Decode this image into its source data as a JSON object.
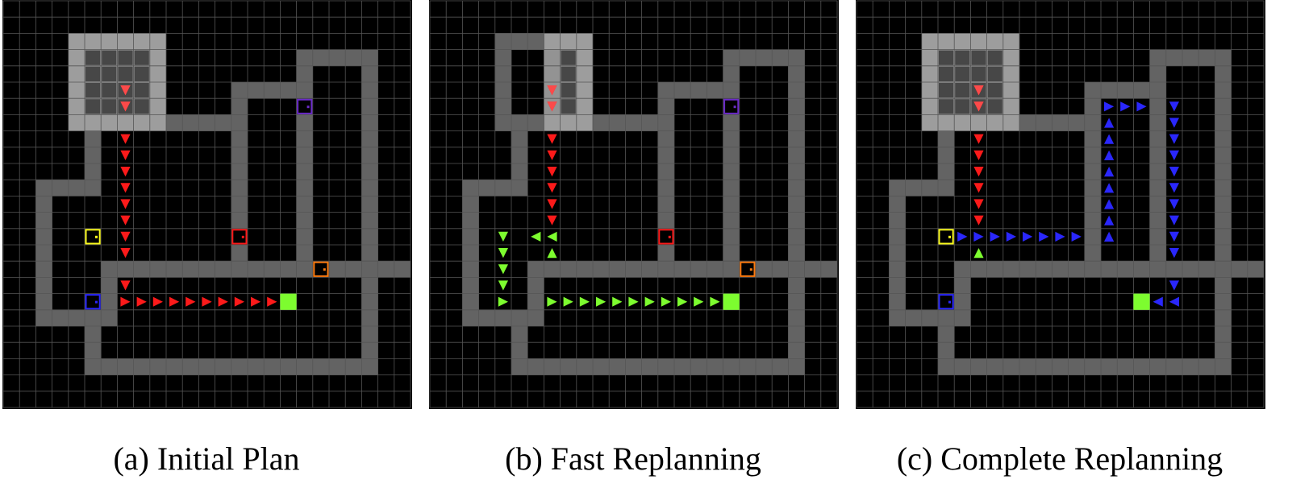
{
  "colors": {
    "background": "#000000",
    "grid": "#555555",
    "wall": "#636363",
    "fog": "#a3a3a3",
    "fog_inner": "#474747",
    "agent": "#fb4a4a",
    "goal": "#7dfc2f",
    "red": "#fc1a1a",
    "green": "#7dfc2f",
    "blue": "#2a27fb",
    "yellow": "#fbfb1d",
    "purple": "#6b2bc9",
    "orange": "#fb7a10",
    "door_blue": "#1a1ac6"
  },
  "panels": [
    {
      "caption": "(a) Initial Plan",
      "agent_view": [
        [
          4,
          2
        ],
        [
          4,
          3
        ],
        [
          4,
          4
        ],
        [
          4,
          5
        ],
        [
          4,
          6
        ],
        [
          4,
          7
        ],
        [
          4,
          8
        ],
        [
          4,
          9
        ],
        [
          4,
          10
        ],
        [
          4,
          11
        ],
        [
          4,
          12
        ],
        [
          4,
          13
        ],
        [
          4,
          14
        ],
        [
          4,
          15
        ],
        [
          4,
          16
        ],
        [
          4,
          17
        ],
        [
          4,
          18
        ],
        [
          4,
          19
        ]
      ],
      "path": [
        {
          "color": "red",
          "dir": "down",
          "cells": [
            [
              5,
              7
            ],
            [
              6,
              7
            ],
            [
              8,
              7
            ],
            [
              9,
              7
            ],
            [
              10,
              7
            ],
            [
              11,
              7
            ],
            [
              12,
              7
            ],
            [
              13,
              7
            ],
            [
              14,
              7
            ],
            [
              15,
              7
            ],
            [
              17,
              7
            ]
          ]
        },
        {
          "color": "red",
          "dir": "right",
          "cells": [
            [
              18,
              7
            ],
            [
              18,
              8
            ],
            [
              18,
              9
            ],
            [
              18,
              10
            ],
            [
              18,
              11
            ],
            [
              18,
              12
            ],
            [
              18,
              13
            ],
            [
              18,
              14
            ],
            [
              18,
              15
            ],
            [
              18,
              16
            ]
          ]
        }
      ],
      "doors": [
        {
          "row": 14,
          "col": 5,
          "color": "yellow"
        },
        {
          "row": 14,
          "col": 14,
          "color": "red"
        },
        {
          "row": 6,
          "col": 18,
          "color": "purple"
        },
        {
          "row": 16,
          "col": 19,
          "color": "orange"
        },
        {
          "row": 18,
          "col": 5,
          "color": "blue"
        }
      ],
      "goal": [
        18,
        17
      ]
    },
    {
      "caption": "(b) Fast Replanning",
      "agent_view": [
        [
          7,
          2
        ],
        [
          7,
          3
        ],
        [
          7,
          4
        ],
        [
          7,
          5
        ],
        [
          7,
          6
        ],
        [
          7,
          7
        ],
        [
          7,
          8
        ],
        [
          7,
          9
        ],
        [
          7,
          10
        ],
        [
          7,
          11
        ],
        [
          7,
          12
        ],
        [
          7,
          13
        ],
        [
          7,
          14
        ],
        [
          7,
          15
        ],
        [
          7,
          16
        ],
        [
          7,
          17
        ],
        [
          7,
          18
        ],
        [
          7,
          19
        ]
      ],
      "path": [
        {
          "color": "red",
          "dir": "down",
          "cells": [
            [
              5,
              7
            ],
            [
              6,
              7
            ],
            [
              8,
              7
            ],
            [
              9,
              7
            ],
            [
              10,
              7
            ],
            [
              11,
              7
            ],
            [
              12,
              7
            ],
            [
              13,
              7
            ]
          ]
        },
        {
          "color": "green",
          "dir": "left",
          "cells": [
            [
              14,
              7
            ],
            [
              14,
              6
            ]
          ]
        },
        {
          "color": "green",
          "dir": "up",
          "cells": [
            [
              15,
              7
            ]
          ]
        },
        {
          "color": "green",
          "dir": "down",
          "cells": [
            [
              14,
              4
            ],
            [
              15,
              4
            ],
            [
              16,
              4
            ],
            [
              17,
              4
            ]
          ]
        },
        {
          "color": "green",
          "dir": "right",
          "cells": [
            [
              18,
              4
            ],
            [
              18,
              7
            ],
            [
              18,
              8
            ],
            [
              18,
              9
            ],
            [
              18,
              10
            ],
            [
              18,
              11
            ],
            [
              18,
              12
            ],
            [
              18,
              13
            ],
            [
              18,
              14
            ],
            [
              18,
              15
            ],
            [
              18,
              16
            ],
            [
              18,
              17
            ]
          ]
        }
      ],
      "doors": [
        {
          "row": 14,
          "col": 14,
          "color": "red"
        },
        {
          "row": 6,
          "col": 18,
          "color": "purple"
        },
        {
          "row": 16,
          "col": 19,
          "color": "orange"
        }
      ],
      "goal": [
        18,
        18
      ]
    },
    {
      "caption": "(c) Complete Replanning",
      "agent_view": [
        [
          4,
          2
        ],
        [
          4,
          3
        ],
        [
          4,
          4
        ],
        [
          4,
          5
        ],
        [
          4,
          6
        ],
        [
          4,
          7
        ],
        [
          4,
          8
        ],
        [
          4,
          9
        ],
        [
          4,
          10
        ],
        [
          4,
          11
        ],
        [
          4,
          12
        ],
        [
          4,
          13
        ],
        [
          4,
          14
        ],
        [
          4,
          15
        ],
        [
          4,
          16
        ],
        [
          4,
          17
        ],
        [
          4,
          18
        ],
        [
          4,
          19
        ]
      ],
      "path": [
        {
          "color": "red",
          "dir": "down",
          "cells": [
            [
              5,
              7
            ],
            [
              6,
              7
            ],
            [
              8,
              7
            ],
            [
              9,
              7
            ],
            [
              10,
              7
            ],
            [
              11,
              7
            ],
            [
              12,
              7
            ],
            [
              13,
              7
            ]
          ]
        },
        {
          "color": "green",
          "dir": "up",
          "cells": [
            [
              15,
              7
            ]
          ]
        },
        {
          "color": "blue",
          "dir": "right",
          "cells": [
            [
              14,
              6
            ],
            [
              14,
              7
            ],
            [
              14,
              8
            ],
            [
              14,
              9
            ],
            [
              14,
              10
            ],
            [
              14,
              11
            ],
            [
              14,
              12
            ],
            [
              14,
              13
            ],
            [
              6,
              15
            ],
            [
              6,
              16
            ],
            [
              6,
              17
            ]
          ]
        },
        {
          "color": "blue",
          "dir": "up",
          "cells": [
            [
              7,
              15
            ],
            [
              8,
              15
            ],
            [
              9,
              15
            ],
            [
              10,
              15
            ],
            [
              11,
              15
            ],
            [
              12,
              15
            ],
            [
              13,
              15
            ],
            [
              14,
              15
            ]
          ]
        },
        {
          "color": "blue",
          "dir": "down",
          "cells": [
            [
              6,
              19
            ],
            [
              7,
              19
            ],
            [
              8,
              19
            ],
            [
              9,
              19
            ],
            [
              10,
              19
            ],
            [
              11,
              19
            ],
            [
              12,
              19
            ],
            [
              13,
              19
            ],
            [
              14,
              19
            ],
            [
              15,
              19
            ],
            [
              17,
              19
            ]
          ]
        },
        {
          "color": "blue",
          "dir": "left",
          "cells": [
            [
              18,
              19
            ],
            [
              18,
              18
            ]
          ]
        }
      ],
      "doors": [
        {
          "row": 14,
          "col": 5,
          "color": "yellow"
        },
        {
          "row": 18,
          "col": 5,
          "color": "blue"
        }
      ],
      "goal": [
        18,
        17
      ]
    }
  ]
}
